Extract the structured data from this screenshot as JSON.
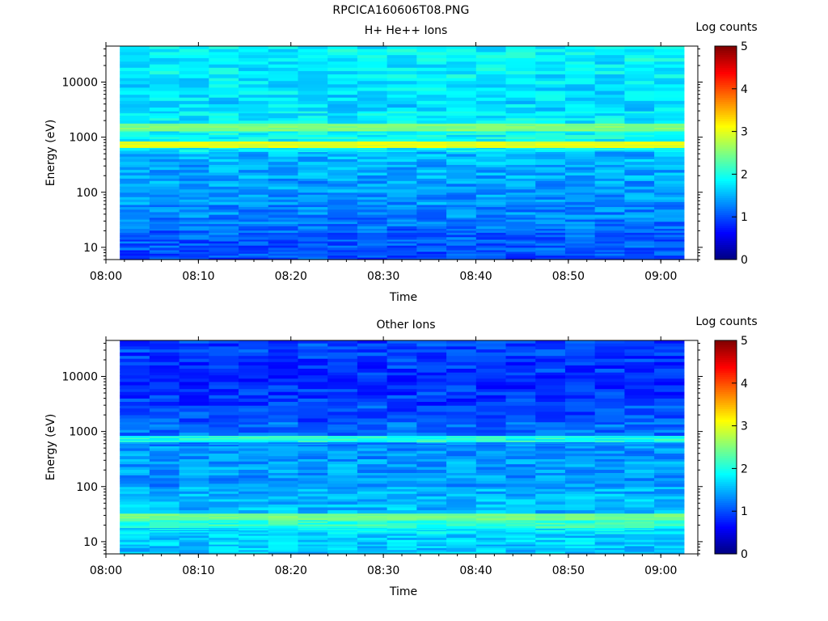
{
  "page_title": "RPCICA160606T08.PNG",
  "chart_data": [
    {
      "type": "heatmap",
      "title": "H+ He++ Ions",
      "xlabel": "Time",
      "ylabel": "Energy (eV)",
      "colorbar_label": "Log counts",
      "x_tick_labels": [
        "08:00",
        "08:10",
        "08:20",
        "08:30",
        "08:40",
        "08:50",
        "09:00"
      ],
      "x_range": [
        "08:00",
        "09:04"
      ],
      "data_time_range": [
        "08:01.5",
        "09:02.5"
      ],
      "y_scale": "log",
      "y_range": [
        6,
        45000
      ],
      "y_tick_labels": [
        "10",
        "100",
        "1000",
        "10000"
      ],
      "y_tick_values": [
        10,
        100,
        1000,
        10000
      ],
      "colorbar_range": [
        0,
        5
      ],
      "colorbar_tick_labels": [
        "0",
        "1",
        "2",
        "3",
        "4",
        "5"
      ],
      "colormap": "jet",
      "time_columns": 19,
      "energy_bands": [
        {
          "e_low": 6,
          "e_high": 9,
          "log_counts": 1.0
        },
        {
          "e_low": 9,
          "e_high": 14,
          "log_counts": 1.05
        },
        {
          "e_low": 14,
          "e_high": 22,
          "log_counts": 1.1
        },
        {
          "e_low": 22,
          "e_high": 35,
          "log_counts": 1.2
        },
        {
          "e_low": 35,
          "e_high": 60,
          "log_counts": 1.3
        },
        {
          "e_low": 60,
          "e_high": 100,
          "log_counts": 1.35
        },
        {
          "e_low": 100,
          "e_high": 180,
          "log_counts": 1.4
        },
        {
          "e_low": 180,
          "e_high": 320,
          "log_counts": 1.45
        },
        {
          "e_low": 320,
          "e_high": 550,
          "log_counts": 1.5
        },
        {
          "e_low": 550,
          "e_high": 650,
          "log_counts": 1.8
        },
        {
          "e_low": 650,
          "e_high": 850,
          "log_counts": 3.0
        },
        {
          "e_low": 850,
          "e_high": 1300,
          "log_counts": 1.9
        },
        {
          "e_low": 1300,
          "e_high": 1800,
          "log_counts": 2.5
        },
        {
          "e_low": 1800,
          "e_high": 3000,
          "log_counts": 1.8
        },
        {
          "e_low": 3000,
          "e_high": 6000,
          "log_counts": 1.7
        },
        {
          "e_low": 6000,
          "e_high": 12000,
          "log_counts": 1.75
        },
        {
          "e_low": 12000,
          "e_high": 24000,
          "log_counts": 1.8
        },
        {
          "e_low": 24000,
          "e_high": 45000,
          "log_counts": 1.85
        }
      ]
    },
    {
      "type": "heatmap",
      "title": "Other Ions",
      "xlabel": "Time",
      "ylabel": "Energy (eV)",
      "colorbar_label": "Log counts",
      "x_tick_labels": [
        "08:00",
        "08:10",
        "08:20",
        "08:30",
        "08:40",
        "08:50",
        "09:00"
      ],
      "x_range": [
        "08:00",
        "09:04"
      ],
      "data_time_range": [
        "08:01.5",
        "09:02.5"
      ],
      "y_scale": "log",
      "y_range": [
        6,
        45000
      ],
      "y_tick_labels": [
        "10",
        "100",
        "1000",
        "10000"
      ],
      "y_tick_values": [
        10,
        100,
        1000,
        10000
      ],
      "colorbar_range": [
        0,
        5
      ],
      "colorbar_tick_labels": [
        "0",
        "1",
        "2",
        "3",
        "4",
        "5"
      ],
      "colormap": "jet",
      "time_columns": 19,
      "energy_bands": [
        {
          "e_low": 6,
          "e_high": 9,
          "log_counts": 1.6
        },
        {
          "e_low": 9,
          "e_high": 14,
          "log_counts": 1.65
        },
        {
          "e_low": 14,
          "e_high": 18,
          "log_counts": 1.75
        },
        {
          "e_low": 18,
          "e_high": 25,
          "log_counts": 2.1
        },
        {
          "e_low": 25,
          "e_high": 33,
          "log_counts": 2.45
        },
        {
          "e_low": 33,
          "e_high": 60,
          "log_counts": 1.55
        },
        {
          "e_low": 60,
          "e_high": 100,
          "log_counts": 1.5
        },
        {
          "e_low": 100,
          "e_high": 180,
          "log_counts": 1.35
        },
        {
          "e_low": 180,
          "e_high": 320,
          "log_counts": 1.4
        },
        {
          "e_low": 320,
          "e_high": 550,
          "log_counts": 1.35
        },
        {
          "e_low": 550,
          "e_high": 650,
          "log_counts": 1.3
        },
        {
          "e_low": 650,
          "e_high": 850,
          "log_counts": 2.0
        },
        {
          "e_low": 850,
          "e_high": 1500,
          "log_counts": 1.15
        },
        {
          "e_low": 1500,
          "e_high": 3000,
          "log_counts": 1.0
        },
        {
          "e_low": 3000,
          "e_high": 6000,
          "log_counts": 0.9
        },
        {
          "e_low": 6000,
          "e_high": 12000,
          "log_counts": 0.85
        },
        {
          "e_low": 12000,
          "e_high": 24000,
          "log_counts": 0.9
        },
        {
          "e_low": 24000,
          "e_high": 45000,
          "log_counts": 0.95
        }
      ]
    }
  ]
}
